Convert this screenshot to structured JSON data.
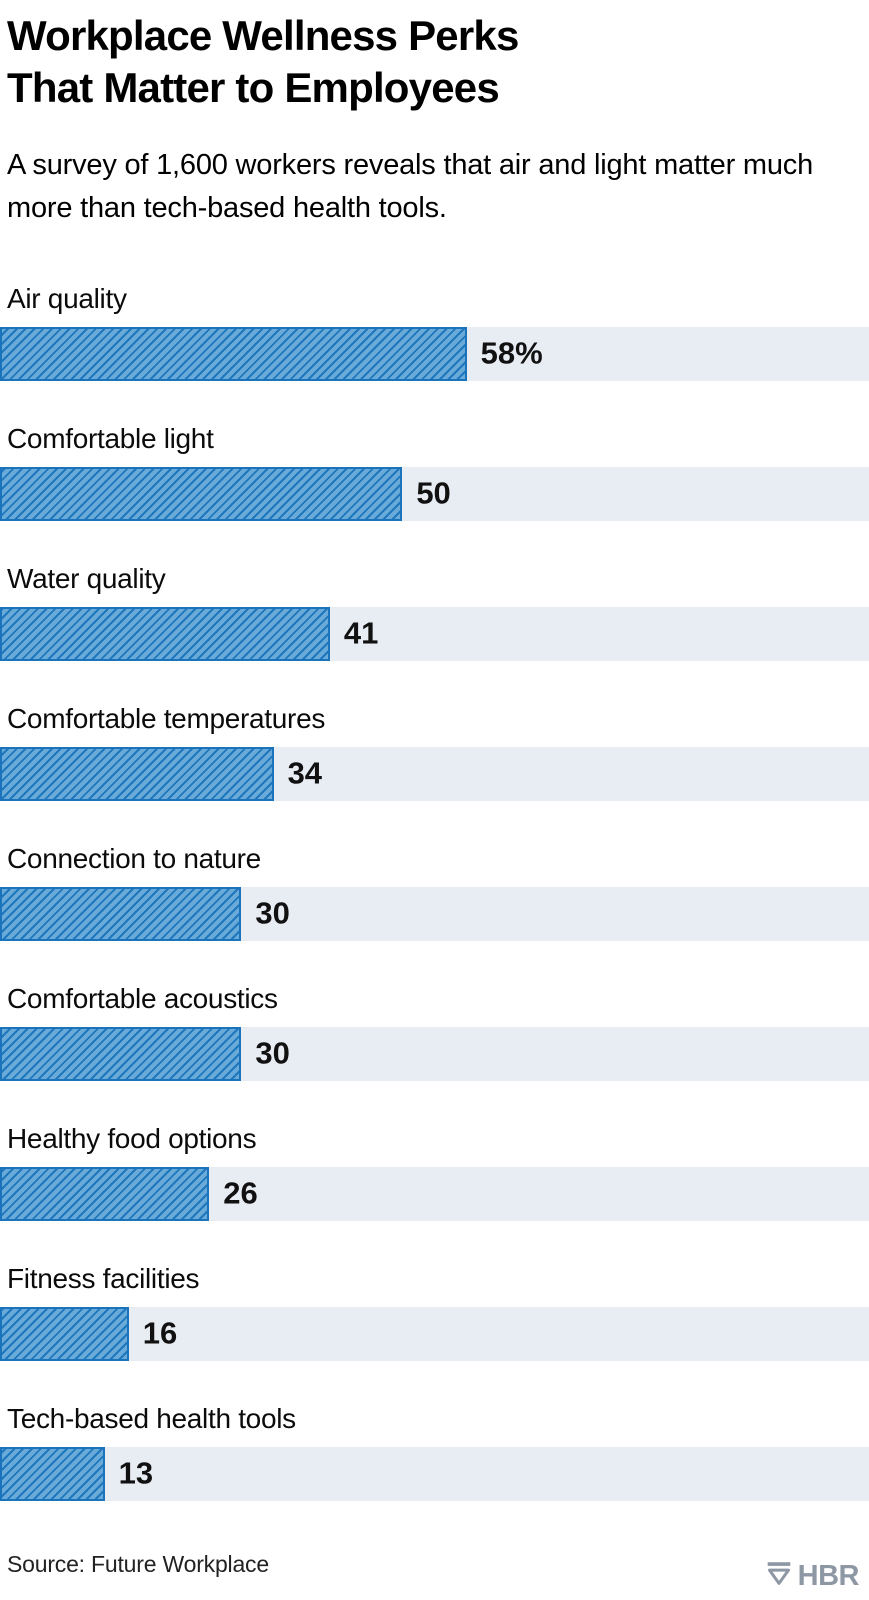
{
  "header": {
    "title_line1": "Workplace Wellness Perks",
    "title_line2": "That Matter to Employees",
    "subtitle": "A survey of 1,600 workers reveals that air and light matter much more than tech-based health tools."
  },
  "chart_data": {
    "type": "bar",
    "orientation": "horizontal",
    "title": "Workplace Wellness Perks That Matter to Employees",
    "subtitle": "A survey of 1,600 workers reveals that air and light matter much more than tech-based health tools.",
    "unit": "percent of workers",
    "categories": [
      "Air quality",
      "Comfortable light",
      "Water quality",
      "Comfortable temperatures",
      "Connection to nature",
      "Comfortable acoustics",
      "Healthy food options",
      "Fitness facilities",
      "Tech-based health tools"
    ],
    "values": [
      58,
      50,
      41,
      34,
      30,
      30,
      26,
      16,
      13
    ],
    "value_labels": [
      "58%",
      "50",
      "41",
      "34",
      "30",
      "30",
      "26",
      "16",
      "13"
    ],
    "axis_max": 108,
    "grid": false,
    "legend": false,
    "colors": {
      "bar_fill": "#69aad9",
      "bar_stripe": "#1e77bd",
      "bar_border": "#1a73bb",
      "track": "#e8ecf3"
    }
  },
  "footer": {
    "source": "Source: Future Workplace",
    "logo_text": "HBR",
    "logo_icon": "hbr-shield-icon",
    "logo_color": "#8d98a4"
  }
}
